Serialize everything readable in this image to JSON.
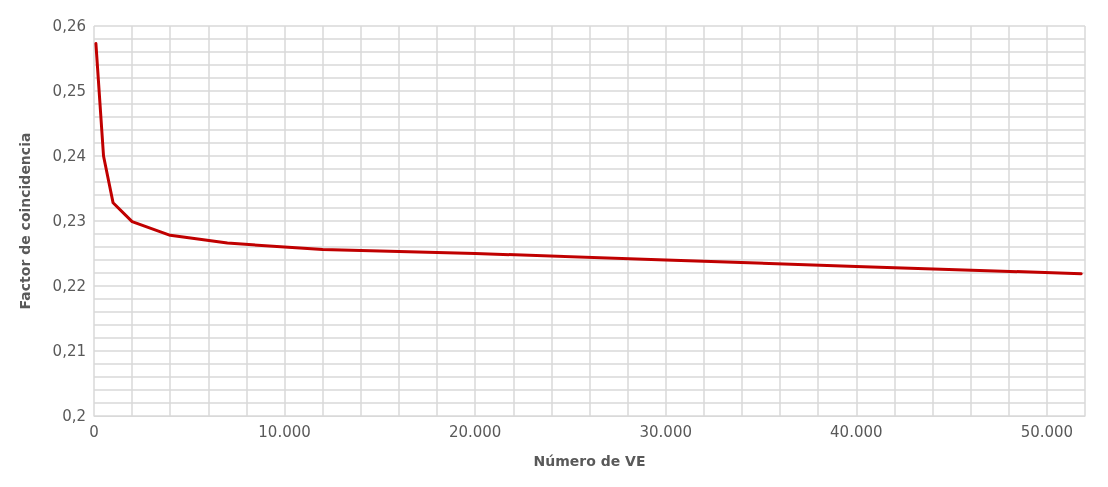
{
  "chart_data": {
    "type": "line",
    "xlabel": "Número de VE",
    "ylabel": "Factor de coincidencia",
    "x": [
      100,
      500,
      1000,
      2000,
      4000,
      7000,
      12000,
      20000,
      30000,
      40000,
      51800
    ],
    "series": [
      {
        "color": "#c00000",
        "values": [
          0.2573,
          0.24,
          0.2328,
          0.2299,
          0.2278,
          0.2266,
          0.2256,
          0.225,
          0.224,
          0.223,
          0.2219
        ]
      }
    ],
    "xlim": [
      0,
      52000
    ],
    "xticks": [
      0,
      {
        "value": 2000,
        "label": null
      },
      {
        "value": 4000,
        "label": null
      },
      {
        "value": 6000,
        "label": null
      },
      {
        "value": 8000,
        "label": null
      },
      {
        "value": 10000,
        "label": "10.000"
      },
      {
        "value": 12000,
        "label": null
      },
      {
        "value": 14000,
        "label": null
      },
      {
        "value": 16000,
        "label": null
      },
      {
        "value": 18000,
        "label": null
      },
      {
        "value": 20000,
        "label": "20.000"
      },
      {
        "value": 22000,
        "label": null
      },
      {
        "value": 24000,
        "label": null
      },
      {
        "value": 26000,
        "label": null
      },
      {
        "value": 28000,
        "label": null
      },
      {
        "value": 30000,
        "label": "30.000"
      },
      {
        "value": 32000,
        "label": null
      },
      {
        "value": 34000,
        "label": null
      },
      {
        "value": 36000,
        "label": null
      },
      {
        "value": 38000,
        "label": null
      },
      {
        "value": 40000,
        "label": "40.000"
      },
      {
        "value": 42000,
        "label": null
      },
      {
        "value": 44000,
        "label": null
      },
      {
        "value": 46000,
        "label": null
      },
      {
        "value": 48000,
        "label": null
      },
      {
        "value": 50000,
        "label": "50.000"
      },
      {
        "value": 52000,
        "label": null
      }
    ],
    "ylim": [
      0.2,
      0.26
    ],
    "yticks": [
      {
        "value": 0.2,
        "label": "0,2"
      },
      {
        "value": 0.202,
        "label": null
      },
      {
        "value": 0.204,
        "label": null
      },
      {
        "value": 0.206,
        "label": null
      },
      {
        "value": 0.208,
        "label": null
      },
      {
        "value": 0.21,
        "label": "0,21"
      },
      {
        "value": 0.212,
        "label": null
      },
      {
        "value": 0.214,
        "label": null
      },
      {
        "value": 0.216,
        "label": null
      },
      {
        "value": 0.218,
        "label": null
      },
      {
        "value": 0.22,
        "label": "0,22"
      },
      {
        "value": 0.222,
        "label": null
      },
      {
        "value": 0.224,
        "label": null
      },
      {
        "value": 0.226,
        "label": null
      },
      {
        "value": 0.228,
        "label": null
      },
      {
        "value": 0.23,
        "label": "0,23"
      },
      {
        "value": 0.232,
        "label": null
      },
      {
        "value": 0.234,
        "label": null
      },
      {
        "value": 0.236,
        "label": null
      },
      {
        "value": 0.238,
        "label": null
      },
      {
        "value": 0.24,
        "label": "0,24"
      },
      {
        "value": 0.242,
        "label": null
      },
      {
        "value": 0.244,
        "label": null
      },
      {
        "value": 0.246,
        "label": null
      },
      {
        "value": 0.248,
        "label": null
      },
      {
        "value": 0.25,
        "label": "0,25"
      },
      {
        "value": 0.252,
        "label": null
      },
      {
        "value": 0.254,
        "label": null
      },
      {
        "value": 0.256,
        "label": null
      },
      {
        "value": 0.258,
        "label": null
      },
      {
        "value": 0.26,
        "label": "0,26"
      }
    ],
    "grid": true,
    "marker": "none",
    "line_style": "solid"
  }
}
